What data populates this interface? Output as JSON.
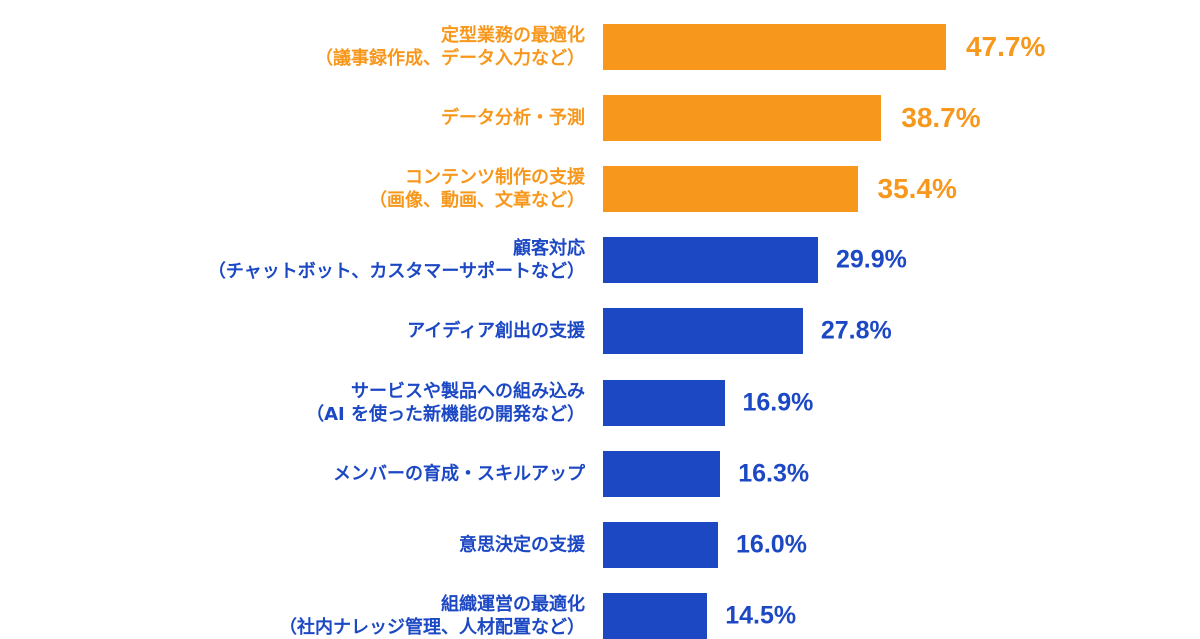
{
  "chart_data": {
    "type": "bar",
    "orientation": "horizontal",
    "categories": [
      "定型業務の最適化\n（議事録作成、データ入力など）",
      "データ分析・予測",
      "コンテンツ制作の支援\n（画像、動画、文章など）",
      "顧客対応\n（チャットボット、カスタマーサポートなど）",
      "アイディア創出の支援",
      "サービスや製品への組み込み\n（AI を使った新機能の開発など）",
      "メンバーの育成・スキルアップ",
      "意思決定の支援",
      "組織運営の最適化\n（社内ナレッジ管理、人材配置など）"
    ],
    "values": [
      47.7,
      38.7,
      35.4,
      29.9,
      27.8,
      16.9,
      16.3,
      16.0,
      14.5
    ],
    "value_labels": [
      "47.7%",
      "38.7%",
      "35.4%",
      "29.9%",
      "27.8%",
      "16.9%",
      "16.3%",
      "16.0%",
      "14.5%"
    ],
    "colors": [
      "#f7981d",
      "#f7981d",
      "#f7981d",
      "#1c48c4",
      "#1c48c4",
      "#1c48c4",
      "#1c48c4",
      "#1c48c4",
      "#1c48c4"
    ]
  }
}
